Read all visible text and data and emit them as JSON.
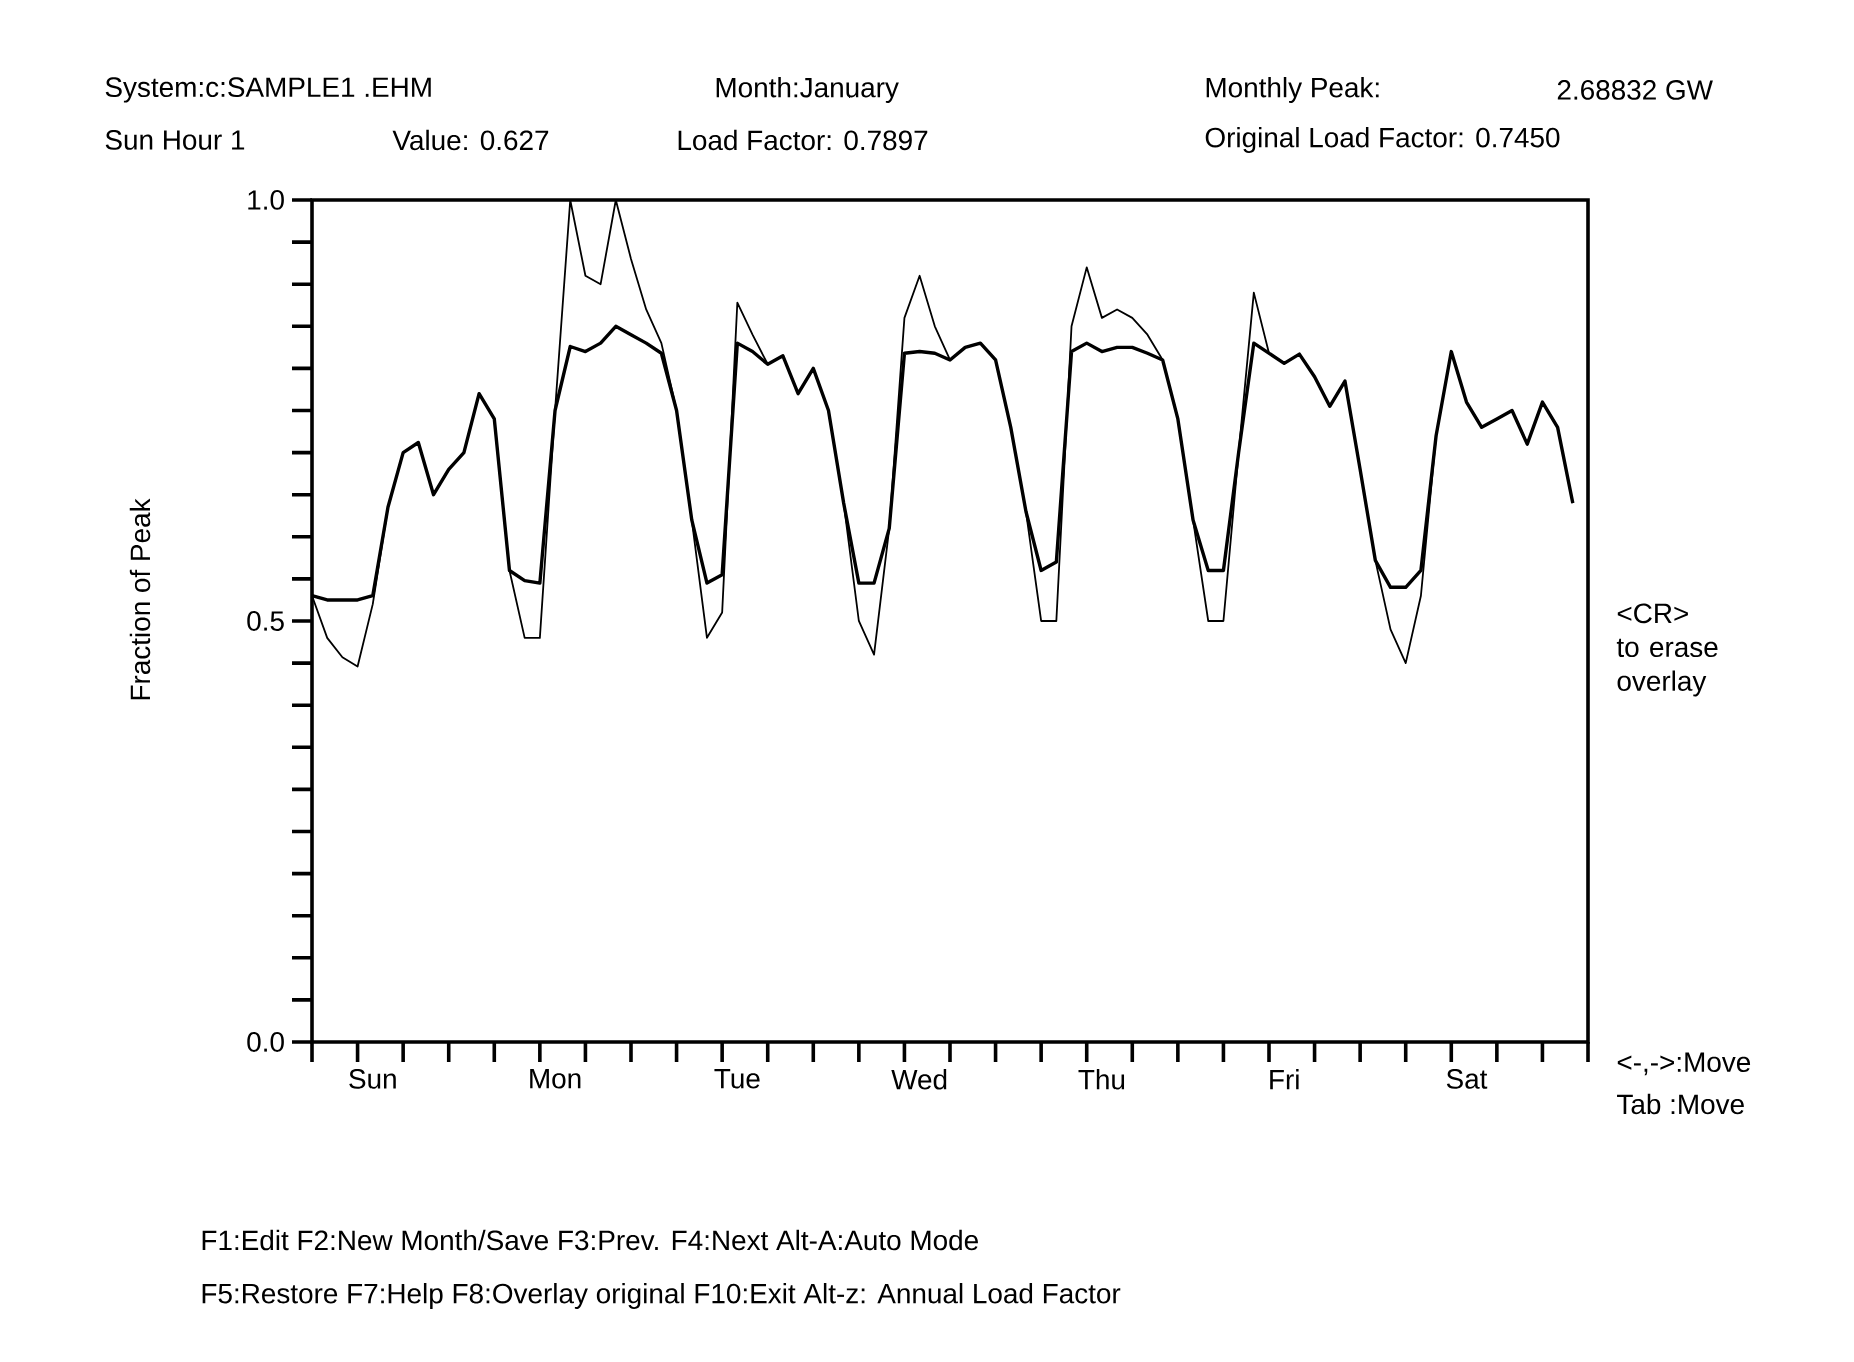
{
  "chart_data": {
    "type": "line",
    "ylabel": "Fraction of Peak",
    "annotations": [
      "System:c:SAMPLE1 .EHM",
      "Month:January",
      "Monthly Peak:",
      "2.68832 GW",
      "Sun Hour 1",
      "Value: 0.627",
      "Load Factor: 0.7897",
      "Original Load Factor: 0.7450",
      "<CR> to erase overlay",
      "<-,->:Move",
      "Tab :Move",
      "F1:Edit F2:New Month/Save F3:Prev. F4:Next Alt-A:Auto Mode",
      "F5:Restore F7:Help F8:Overlay original F10:Exit Alt-z: Annual Load Factor"
    ],
    "categories": [
      null,
      null,
      null,
      null,
      "Sun",
      null,
      null,
      null,
      null,
      null,
      null,
      null,
      null,
      null,
      null,
      null,
      "Mon",
      null,
      null,
      null,
      null,
      null,
      null,
      null,
      null,
      null,
      null,
      null,
      "Tue",
      null,
      null,
      null,
      null,
      null,
      null,
      null,
      null,
      null,
      null,
      null,
      "Wed",
      null,
      null,
      null,
      null,
      null,
      null,
      null,
      null,
      null,
      null,
      null,
      "Thu",
      null,
      null,
      null,
      null,
      null,
      null,
      null,
      null,
      null,
      null,
      null,
      "Fri",
      null,
      null,
      null,
      null,
      null,
      null,
      null,
      null,
      null,
      null,
      null,
      "Sat",
      null,
      null,
      null,
      null,
      null,
      null,
      null
    ],
    "series": [
      {
        "color": "#000000",
        "values": [
          0.53,
          0.48,
          0.457,
          0.446,
          0.52,
          0.635,
          0.7,
          0.712,
          0.65,
          0.68,
          0.7,
          0.77,
          0.74,
          0.56,
          0.48,
          0.48,
          0.75,
          1.0,
          0.91,
          0.9,
          1.0,
          0.93,
          0.87,
          0.83,
          0.75,
          0.62,
          0.48,
          0.51,
          0.878,
          0.84,
          0.805,
          0.815,
          0.77,
          0.8,
          0.75,
          0.64,
          0.5,
          0.46,
          0.61,
          0.86,
          0.91,
          0.85,
          0.81,
          0.825,
          0.83,
          0.81,
          0.73,
          0.63,
          0.5,
          0.5,
          0.85,
          0.92,
          0.86,
          0.87,
          0.86,
          0.84,
          0.81,
          0.74,
          0.62,
          0.5,
          0.5,
          0.7,
          0.89,
          0.818,
          0.806,
          0.817,
          0.79,
          0.755,
          0.785,
          0.68,
          0.572,
          0.49,
          0.45,
          0.53,
          0.72,
          0.82,
          0.76,
          0.73,
          0.74,
          0.75,
          0.71,
          0.76,
          0.73,
          0.64
        ]
      },
      {
        "color": "#000000",
        "values": [
          0.53,
          0.525,
          0.525,
          0.525,
          0.53,
          0.635,
          0.7,
          0.712,
          0.65,
          0.68,
          0.7,
          0.77,
          0.74,
          0.56,
          0.548,
          0.545,
          0.75,
          0.826,
          0.82,
          0.83,
          0.85,
          0.84,
          0.83,
          0.818,
          0.75,
          0.62,
          0.545,
          0.555,
          0.83,
          0.82,
          0.805,
          0.815,
          0.77,
          0.8,
          0.75,
          0.64,
          0.545,
          0.545,
          0.61,
          0.818,
          0.82,
          0.818,
          0.81,
          0.825,
          0.83,
          0.81,
          0.73,
          0.63,
          0.56,
          0.57,
          0.82,
          0.83,
          0.82,
          0.825,
          0.825,
          0.818,
          0.81,
          0.74,
          0.62,
          0.56,
          0.56,
          0.7,
          0.83,
          0.818,
          0.806,
          0.817,
          0.79,
          0.755,
          0.785,
          0.68,
          0.572,
          0.54,
          0.54,
          0.56,
          0.72,
          0.82,
          0.76,
          0.73,
          0.74,
          0.75,
          0.71,
          0.76,
          0.73,
          0.64
        ]
      }
    ],
    "ylim": [
      0,
      1.0
    ],
    "yticks": [
      {
        "value": 0,
        "label": "0.0"
      },
      {
        "value": 0.05,
        "label": null
      },
      {
        "value": 0.1,
        "label": null
      },
      {
        "value": 0.15,
        "label": null
      },
      {
        "value": 0.2,
        "label": null
      },
      {
        "value": 0.25,
        "label": null
      },
      {
        "value": 0.3,
        "label": null
      },
      {
        "value": 0.35,
        "label": null
      },
      {
        "value": 0.4,
        "label": null
      },
      {
        "value": 0.45,
        "label": null
      },
      {
        "value": 0.5,
        "label": "0.5"
      },
      {
        "value": 0.55,
        "label": null
      },
      {
        "value": 0.6,
        "label": null
      },
      {
        "value": 0.65,
        "label": null
      },
      {
        "value": 0.7,
        "label": null
      },
      {
        "value": 0.75,
        "label": null
      },
      {
        "value": 0.8,
        "label": null
      },
      {
        "value": 0.85,
        "label": null
      },
      {
        "value": 0.9,
        "label": null
      },
      {
        "value": 0.95,
        "label": null
      },
      {
        "value": 1.0,
        "label": "1.0"
      }
    ],
    "line_style": "solid"
  }
}
